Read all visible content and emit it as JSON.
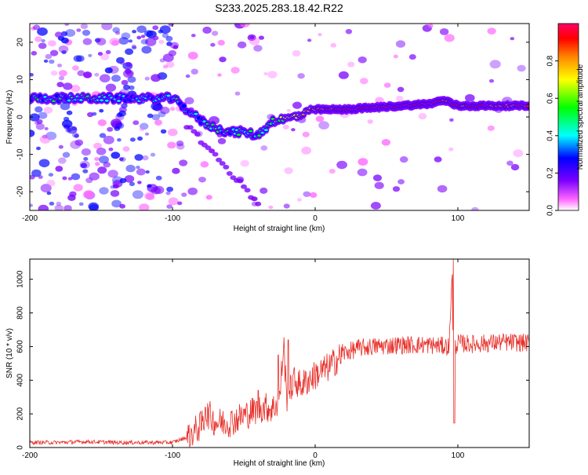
{
  "title": "S233.2025.283.18.42.R22",
  "chart_data": [
    {
      "type": "heatmap",
      "id": "spectrogram",
      "xlabel": "Height of straight line (km)",
      "ylabel": "Frequency (Hz)",
      "xlim": [
        -200,
        150
      ],
      "ylim": [
        -25,
        25
      ],
      "xticks": [
        -200,
        -100,
        0,
        100
      ],
      "yticks": [
        -20,
        -10,
        0,
        10,
        20
      ],
      "colorbar": {
        "label": "Normalized spectral amplitude",
        "range": [
          0,
          1
        ],
        "ticks": [
          0.0,
          0.2,
          0.4,
          0.6,
          0.8
        ],
        "tick_labels": [
          "0.0",
          "0.2",
          "0.4",
          "0.6",
          "0.8"
        ]
      },
      "ridge": {
        "x": [
          -200,
          -180,
          -160,
          -140,
          -120,
          -100,
          -90,
          -80,
          -70,
          -60,
          -50,
          -40,
          -30,
          -20,
          -10,
          0,
          20,
          40,
          60,
          80,
          90,
          100,
          120,
          150
        ],
        "frequency": [
          5,
          5,
          5,
          5,
          5,
          5,
          2,
          -1,
          -3,
          -4,
          -4,
          -5,
          -1,
          -0.5,
          0.5,
          2,
          2,
          2.5,
          3,
          3.5,
          4.5,
          3,
          3,
          3
        ],
        "amplitude": [
          0.3,
          0.35,
          0.35,
          0.3,
          0.3,
          0.35,
          0.3,
          0.3,
          0.35,
          0.35,
          0.35,
          0.35,
          0.4,
          0.6,
          0.75,
          0.8,
          0.95,
          0.95,
          0.95,
          0.95,
          0.9,
          0.9,
          0.9,
          0.85
        ]
      }
    },
    {
      "type": "line",
      "id": "snr",
      "xlabel": "Height of straight line (km)",
      "ylabel": "SNR (10 * v/v)",
      "xlim": [
        -200,
        150
      ],
      "ylim": [
        0,
        1120
      ],
      "xticks": [
        -200,
        -100,
        0,
        100
      ],
      "yticks": [
        0,
        200,
        400,
        600,
        800,
        1000
      ],
      "color": "#e8302a",
      "series": [
        {
          "name": "SNR",
          "x": [
            -200,
            -180,
            -160,
            -140,
            -120,
            -100,
            -90,
            -80,
            -75,
            -70,
            -60,
            -50,
            -40,
            -35,
            -30,
            -25,
            -22,
            -20,
            -15,
            -10,
            -5,
            0,
            10,
            20,
            30,
            40,
            50,
            60,
            80,
            94,
            96,
            97,
            98,
            99,
            100,
            110,
            120,
            130,
            140,
            150
          ],
          "y": [
            30,
            30,
            35,
            30,
            30,
            30,
            60,
            130,
            200,
            150,
            150,
            190,
            230,
            240,
            230,
            280,
            620,
            280,
            400,
            370,
            400,
            430,
            480,
            560,
            590,
            600,
            605,
            610,
            610,
            600,
            1100,
            150,
            600,
            610,
            620,
            615,
            620,
            625,
            625,
            620
          ]
        }
      ],
      "spikes": [
        {
          "x": -77,
          "y": 240
        },
        {
          "x": -40,
          "y": 340
        },
        {
          "x": -26,
          "y": 550
        },
        {
          "x": -19,
          "y": 640
        },
        {
          "x": 97,
          "y": 1120
        },
        {
          "x": 97.5,
          "y": 145
        }
      ]
    }
  ]
}
